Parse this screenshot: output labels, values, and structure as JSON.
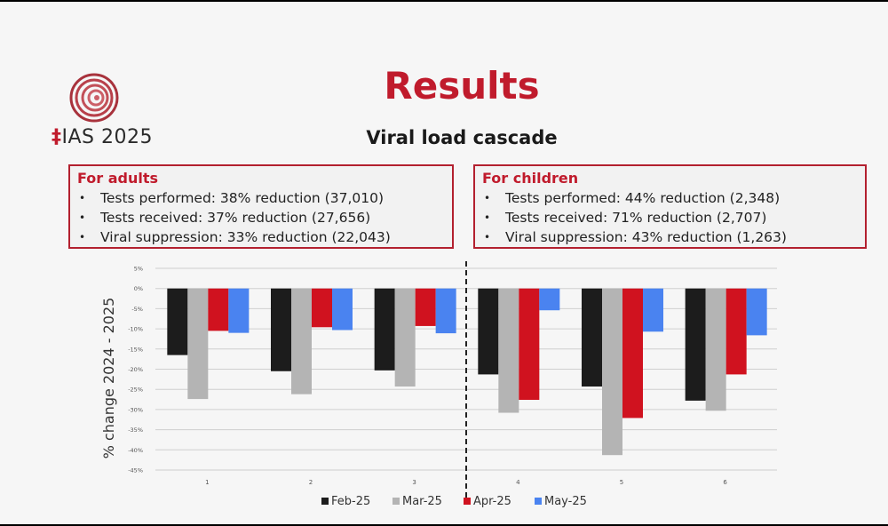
{
  "slide": {
    "title": "Results",
    "subtitle": "Viral load cascade",
    "logo": {
      "brand": "IAS 2025",
      "colors": {
        "red": "#c01b2c"
      }
    }
  },
  "boxes": {
    "adults": {
      "heading": "For adults",
      "items": [
        "Tests performed: 38% reduction (37,010)",
        "Tests received: 37% reduction (27,656)",
        "Viral suppression: 33% reduction (22,043)"
      ]
    },
    "children": {
      "heading": "For children",
      "items": [
        "Tests performed: 44% reduction (2,348)",
        "Tests received: 71% reduction (2,707)",
        "Viral suppression: 43% reduction (1,263)"
      ]
    }
  },
  "chart_data": {
    "type": "bar",
    "title": "",
    "xlabel": "",
    "ylabel": "% change 2024 - 2025",
    "categories": [
      "1",
      "2",
      "3",
      "4",
      "5",
      "6"
    ],
    "ylim": [
      -45,
      5
    ],
    "yticks": [
      5,
      0,
      -5,
      -10,
      -15,
      -20,
      -25,
      -30,
      -35,
      -40,
      -45
    ],
    "ytick_labels": [
      "5%",
      "0%",
      "-5%",
      "-10%",
      "-15%",
      "-20%",
      "-25%",
      "-30%",
      "-35%",
      "-40%",
      "-45%"
    ],
    "grid": true,
    "legend_position": "bottom",
    "divider_after_category": 3,
    "series": [
      {
        "name": "Feb-25",
        "color": "#1c1c1c",
        "values": [
          -16.5,
          -20.5,
          -20.3,
          -21.3,
          -24.3,
          -27.8
        ]
      },
      {
        "name": "Mar-25",
        "color": "#b4b4b4",
        "values": [
          -27.4,
          -26.2,
          -24.3,
          -30.8,
          -41.3,
          -30.3
        ]
      },
      {
        "name": "Apr-25",
        "color": "#d0121f",
        "values": [
          -10.5,
          -9.6,
          -9.3,
          -27.6,
          -32.1,
          -21.3
        ]
      },
      {
        "name": "May-25",
        "color": "#4a83f0",
        "values": [
          -11.0,
          -10.3,
          -11.1,
          -5.4,
          -10.7,
          -11.6
        ]
      }
    ]
  }
}
